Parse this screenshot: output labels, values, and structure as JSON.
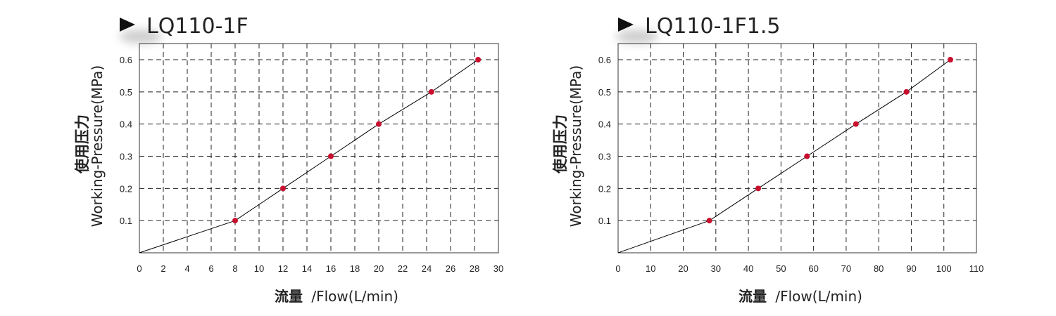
{
  "chart_data": [
    {
      "type": "line",
      "title": "LQ110-1F",
      "xlabel_cn": "流量",
      "xlabel_en": "/Flow(L/min)",
      "ylabel_cn": "使用压力",
      "ylabel_en": "Working-Pressure(MPa)",
      "xlim": [
        0,
        30
      ],
      "ylim": [
        0,
        0.6
      ],
      "x_ticks": [
        0,
        2,
        4,
        6,
        8,
        10,
        12,
        14,
        16,
        18,
        20,
        22,
        24,
        26,
        28,
        30
      ],
      "x_tick_labels": [
        "0",
        "2",
        "4",
        "6",
        "8",
        "10",
        "12",
        "14",
        "16",
        "18",
        "20",
        "22",
        "24",
        "26",
        "28",
        "30"
      ],
      "y_ticks": [
        0.1,
        0.2,
        0.3,
        0.4,
        0.5,
        0.6
      ],
      "y_tick_labels": [
        "0.1",
        "0.2",
        "0.3",
        "0.4",
        "0.5",
        "0.6"
      ],
      "grid": true,
      "line": {
        "x": [
          0,
          8,
          12,
          16,
          20,
          24.4,
          28.3
        ],
        "y": [
          0,
          0.1,
          0.2,
          0.3,
          0.4,
          0.5,
          0.6
        ]
      },
      "points": {
        "x": [
          8,
          12,
          16,
          20,
          24.4,
          28.3
        ],
        "y": [
          0.1,
          0.2,
          0.3,
          0.4,
          0.5,
          0.6
        ]
      },
      "line_color": "#000000",
      "point_color": "#c8102e"
    },
    {
      "type": "line",
      "title": "LQ110-1F1.5",
      "xlabel_cn": "流量",
      "xlabel_en": "/Flow(L/min)",
      "ylabel_cn": "使用压力",
      "ylabel_en": "Working-Pressure(MPa)",
      "xlim": [
        0,
        110
      ],
      "ylim": [
        0,
        0.6
      ],
      "x_ticks": [
        0,
        10,
        20,
        30,
        40,
        50,
        60,
        70,
        80,
        90,
        100,
        110
      ],
      "x_tick_labels": [
        "0",
        "10",
        "20",
        "30",
        "40",
        "50",
        "60",
        "70",
        "80",
        "90",
        "100",
        "110"
      ],
      "y_ticks": [
        0.1,
        0.2,
        0.3,
        0.4,
        0.5,
        0.6
      ],
      "y_tick_labels": [
        "0.1",
        "0.2",
        "0.3",
        "0.4",
        "0.5",
        "0.6"
      ],
      "grid": true,
      "line": {
        "x": [
          0,
          28,
          43,
          58,
          73,
          88.5,
          102
        ],
        "y": [
          0,
          0.1,
          0.2,
          0.3,
          0.4,
          0.5,
          0.6
        ]
      },
      "points": {
        "x": [
          28,
          43,
          58,
          73,
          88.5,
          102
        ],
        "y": [
          0.1,
          0.2,
          0.3,
          0.4,
          0.5,
          0.6
        ]
      },
      "line_color": "#000000",
      "point_color": "#c8102e"
    }
  ]
}
